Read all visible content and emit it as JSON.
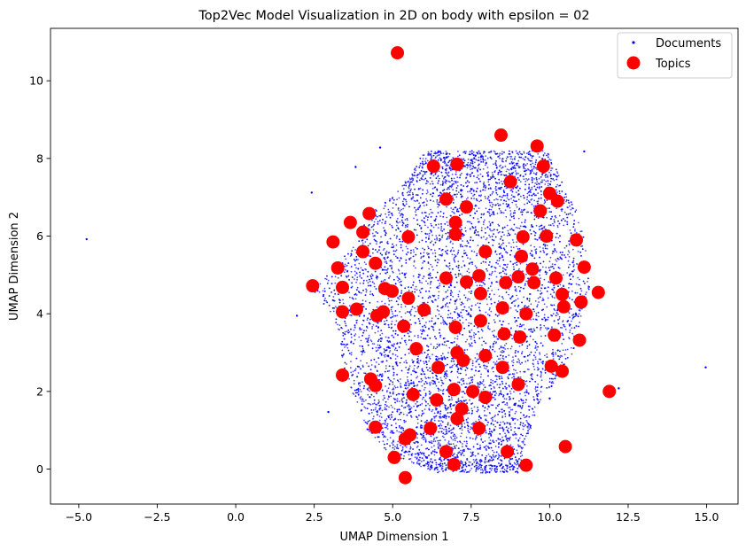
{
  "chart_data": {
    "type": "scatter",
    "title": "Top2Vec Model Visualization in 2D on body with epsilon = 02",
    "xlabel": "UMAP Dimension 1",
    "ylabel": "UMAP Dimension 2",
    "xlim": [
      -5.9,
      16.0
    ],
    "ylim": [
      -0.9,
      11.35
    ],
    "xticks": [
      -5.0,
      -2.5,
      0.0,
      2.5,
      5.0,
      7.5,
      10.0,
      12.5,
      15.0
    ],
    "xtick_labels": [
      "−5.0",
      "−2.5",
      "0.0",
      "2.5",
      "5.0",
      "7.5",
      "10.0",
      "12.5",
      "15.0"
    ],
    "yticks": [
      0,
      2,
      4,
      6,
      8,
      10
    ],
    "ytick_labels": [
      "0",
      "2",
      "4",
      "6",
      "8",
      "10"
    ],
    "grid": false,
    "legend_position": "top-right",
    "series": [
      {
        "name": "Documents",
        "color": "#0000ff",
        "marker": "small-dot",
        "rendering": "dense point cloud (tens of thousands of documents); main cloud spans x≈2.4–11.2, y≈-0.1–8.3",
        "outliers": [
          [
            -4.75,
            5.92
          ],
          [
            2.42,
            7.12
          ],
          [
            1.95,
            3.95
          ],
          [
            5.1,
            10.73
          ],
          [
            4.6,
            8.28
          ],
          [
            3.82,
            7.78
          ],
          [
            2.95,
            1.47
          ],
          [
            11.1,
            8.18
          ],
          [
            12.2,
            2.08
          ],
          [
            14.97,
            2.62
          ],
          [
            10.0,
            1.82
          ]
        ]
      },
      {
        "name": "Topics",
        "color": "#ff0000",
        "marker": "large-circle",
        "points": [
          [
            5.15,
            10.72
          ],
          [
            8.45,
            8.6
          ],
          [
            9.6,
            8.32
          ],
          [
            9.8,
            7.8
          ],
          [
            6.3,
            7.8
          ],
          [
            7.05,
            7.85
          ],
          [
            8.75,
            7.4
          ],
          [
            6.7,
            6.95
          ],
          [
            10.0,
            7.1
          ],
          [
            10.25,
            6.9
          ],
          [
            7.35,
            6.75
          ],
          [
            9.7,
            6.65
          ],
          [
            4.25,
            6.58
          ],
          [
            3.65,
            6.35
          ],
          [
            7.0,
            6.35
          ],
          [
            7.0,
            6.05
          ],
          [
            4.05,
            6.1
          ],
          [
            5.5,
            5.98
          ],
          [
            9.9,
            6.0
          ],
          [
            3.1,
            5.85
          ],
          [
            9.15,
            5.98
          ],
          [
            10.85,
            5.9
          ],
          [
            4.05,
            5.6
          ],
          [
            7.95,
            5.6
          ],
          [
            9.1,
            5.48
          ],
          [
            4.45,
            5.3
          ],
          [
            3.25,
            5.18
          ],
          [
            9.45,
            5.15
          ],
          [
            11.1,
            5.2
          ],
          [
            7.75,
            4.98
          ],
          [
            9.0,
            4.95
          ],
          [
            10.2,
            4.92
          ],
          [
            6.7,
            4.92
          ],
          [
            7.35,
            4.82
          ],
          [
            8.6,
            4.8
          ],
          [
            9.5,
            4.8
          ],
          [
            2.45,
            4.72
          ],
          [
            3.4,
            4.68
          ],
          [
            4.75,
            4.65
          ],
          [
            4.98,
            4.58
          ],
          [
            7.8,
            4.52
          ],
          [
            10.4,
            4.5
          ],
          [
            11.55,
            4.55
          ],
          [
            5.5,
            4.4
          ],
          [
            11.0,
            4.3
          ],
          [
            10.45,
            4.18
          ],
          [
            8.5,
            4.15
          ],
          [
            3.85,
            4.12
          ],
          [
            6.0,
            4.1
          ],
          [
            3.4,
            4.05
          ],
          [
            4.7,
            4.05
          ],
          [
            9.25,
            4.0
          ],
          [
            4.5,
            3.95
          ],
          [
            7.8,
            3.82
          ],
          [
            5.35,
            3.68
          ],
          [
            7.0,
            3.65
          ],
          [
            8.55,
            3.48
          ],
          [
            10.15,
            3.45
          ],
          [
            9.05,
            3.4
          ],
          [
            10.95,
            3.32
          ],
          [
            5.75,
            3.1
          ],
          [
            7.05,
            3.0
          ],
          [
            7.95,
            2.92
          ],
          [
            7.25,
            2.8
          ],
          [
            10.05,
            2.65
          ],
          [
            6.45,
            2.62
          ],
          [
            8.5,
            2.62
          ],
          [
            10.4,
            2.52
          ],
          [
            3.4,
            2.42
          ],
          [
            4.3,
            2.32
          ],
          [
            4.45,
            2.15
          ],
          [
            9.0,
            2.18
          ],
          [
            6.95,
            2.05
          ],
          [
            7.55,
            2.0
          ],
          [
            11.9,
            2.0
          ],
          [
            5.65,
            1.92
          ],
          [
            7.95,
            1.85
          ],
          [
            6.4,
            1.78
          ],
          [
            7.2,
            1.55
          ],
          [
            7.05,
            1.3
          ],
          [
            4.45,
            1.08
          ],
          [
            6.2,
            1.05
          ],
          [
            7.75,
            1.05
          ],
          [
            5.55,
            0.88
          ],
          [
            5.4,
            0.78
          ],
          [
            10.5,
            0.58
          ],
          [
            8.65,
            0.45
          ],
          [
            6.7,
            0.45
          ],
          [
            5.05,
            0.3
          ],
          [
            6.95,
            0.12
          ],
          [
            9.25,
            0.1
          ],
          [
            5.4,
            -0.22
          ]
        ]
      }
    ]
  }
}
